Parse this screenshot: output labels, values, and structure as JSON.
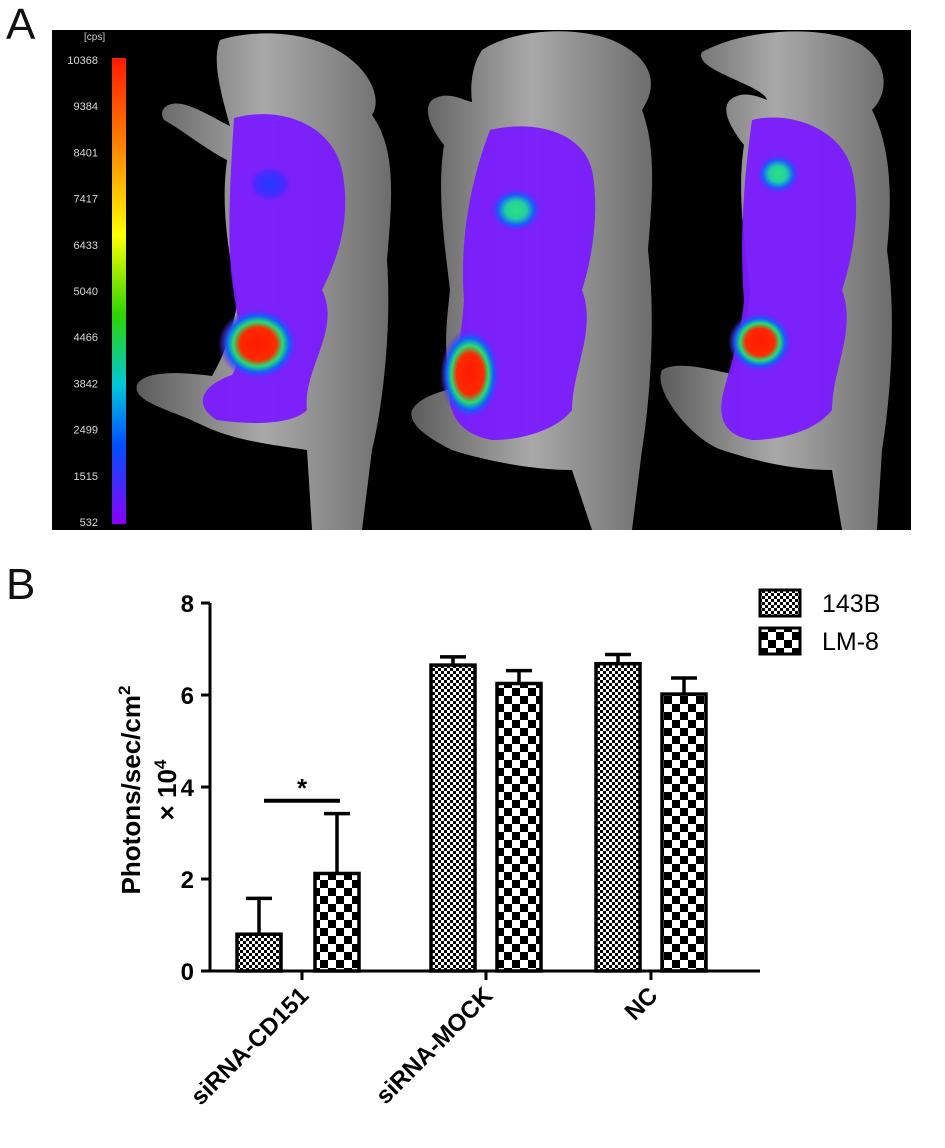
{
  "panel_a": {
    "label": "A",
    "unit_label": "[cps]",
    "scale_ticks": [
      "10368",
      "9384",
      "8401",
      "7417",
      "6433",
      "5040",
      "4466",
      "3842",
      "2499",
      "1515",
      "532"
    ]
  },
  "panel_b": {
    "label": "B"
  },
  "chart_data": {
    "type": "bar",
    "title": "",
    "ylabel": "Photons/sec/cm² × 10⁴",
    "ylabel_parts": {
      "main": "Photons/sec/cm",
      "sup1": "2",
      "times": "× 10",
      "sup2": "4"
    },
    "xlabel": "",
    "categories": [
      "siRNA-CD151",
      "siRNA-MOCK",
      "NC"
    ],
    "ylim": [
      0,
      8
    ],
    "yticks": [
      "0",
      "2",
      "4",
      "6",
      "8"
    ],
    "series": [
      {
        "name": "143B",
        "values": [
          0.8,
          6.65,
          6.68
        ],
        "errors": [
          0.78,
          0.18,
          0.2
        ],
        "pattern": "fine-checker"
      },
      {
        "name": "LM-8",
        "values": [
          2.12,
          6.25,
          6.02
        ],
        "errors": [
          1.3,
          0.28,
          0.35
        ],
        "pattern": "coarse-checker"
      }
    ],
    "legend_position": "top-right",
    "annotations": [
      {
        "text": "*",
        "category": "siRNA-CD151"
      }
    ],
    "grid": false
  }
}
